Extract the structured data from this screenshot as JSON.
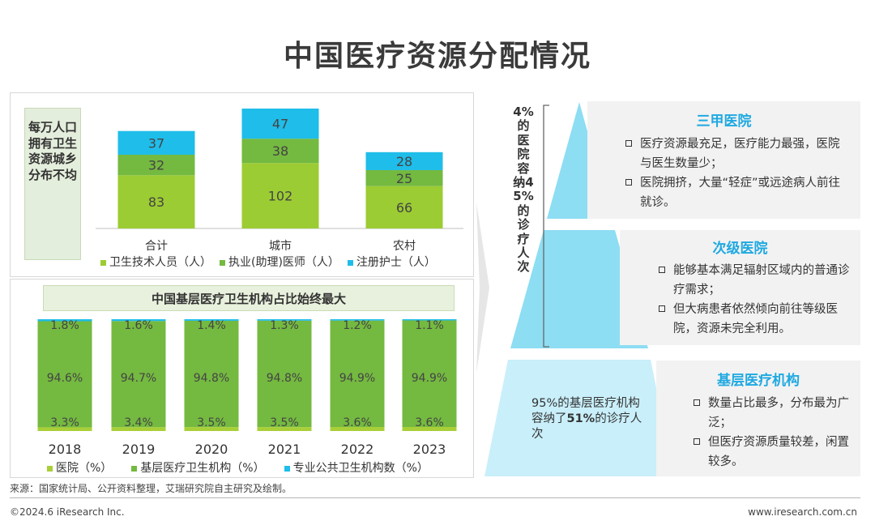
{
  "title": "中国医疗资源分配情况",
  "top_panel": {
    "side_label": "每万人口拥有卫生资源城乡分布不均"
  },
  "bottom_panel": {
    "title": "中国基层医疗卫生机构占比始终最大"
  },
  "chart_data": [
    {
      "type": "bar",
      "stacked": true,
      "categories": [
        "合计",
        "城市",
        "农村"
      ],
      "series": [
        {
          "name": "卫生技术人员（人）",
          "values": [
            83,
            102,
            66
          ],
          "color": "#9ccc33"
        },
        {
          "name": "执业(助理)医师（人）",
          "values": [
            32,
            38,
            25
          ],
          "color": "#74b940"
        },
        {
          "name": "注册护士（人）",
          "values": [
            37,
            47,
            28
          ],
          "color": "#1fbde9"
        }
      ],
      "labels": [
        [
          "83",
          "32",
          "37"
        ],
        [
          "102",
          "38",
          "47"
        ],
        [
          "66",
          "25",
          "28"
        ]
      ],
      "legend_position": "bottom",
      "grid": false
    },
    {
      "type": "bar",
      "stacked": true,
      "percent": true,
      "categories": [
        "2018",
        "2019",
        "2020",
        "2021",
        "2022",
        "2023"
      ],
      "series": [
        {
          "name": "医院（%）",
          "values": [
            3.3,
            3.4,
            3.5,
            3.5,
            3.6,
            3.6
          ],
          "color": "#a9cf38"
        },
        {
          "name": "基层医疗卫生机构（%）",
          "values": [
            94.6,
            94.7,
            94.8,
            94.8,
            94.9,
            94.9
          ],
          "color": "#74b940"
        },
        {
          "name": "专业公共卫生机构数（%）",
          "values": [
            1.8,
            1.6,
            1.4,
            1.3,
            1.2,
            1.1
          ],
          "color": "#1fbde9"
        }
      ],
      "labels": [
        [
          "3.3%",
          "94.6%",
          "1.8%"
        ],
        [
          "3.4%",
          "94.7%",
          "1.6%"
        ],
        [
          "3.5%",
          "94.8%",
          "1.4%"
        ],
        [
          "3.5%",
          "94.8%",
          "1.3%"
        ],
        [
          "3.6%",
          "94.9%",
          "1.2%"
        ],
        [
          "3.6%",
          "94.9%",
          "1.1%"
        ]
      ],
      "legend_position": "bottom",
      "grid": false
    }
  ],
  "pyramid": {
    "vertical_text": "4%的医院容纳45%的诊疗人次",
    "tiers": [
      {
        "title": "三甲医院",
        "bullets": [
          "医疗资源最充足，医疗能力最强，医院与医生数量少；",
          "医院拥挤，大量“轻症”或远途病人前往就诊。"
        ]
      },
      {
        "title": "次级医院",
        "bullets": [
          "能够基本满足辐射区域内的普通诊疗需求；",
          "但大病患者依然倾向前往等级医院，资源未完全利用。"
        ]
      },
      {
        "title": "基层医疗机构",
        "bullets": [
          "数量占比最多，分布最为广泛；",
          "但医疗资源质量较差，闲置较多。"
        ]
      }
    ],
    "base_note_1": "95%的基层医疗机构容纳了",
    "base_note_2": "51%",
    "base_note_3": "的诊疗人次"
  },
  "footer": {
    "source": "来源：国家统计局、公开资料整理，艾瑞研究院自主研究及绘制。",
    "copyright": "©2024.6 iResearch Inc.",
    "website": "www.iresearch.com.cn"
  },
  "colors": {
    "accent_blue": "#1fbde9",
    "green_light": "#9ccc33",
    "green": "#74b940",
    "pyramid_blue": "#8dddf3",
    "pyramid_blue_light": "#c9effa"
  }
}
